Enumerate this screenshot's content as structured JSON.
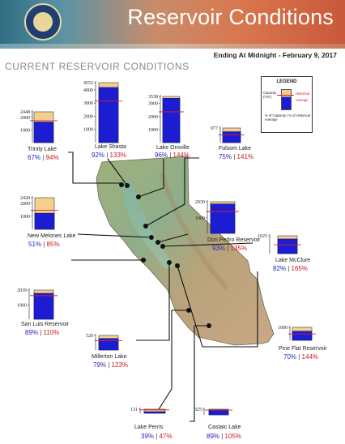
{
  "header": {
    "title": "Reservoir Conditions",
    "date_line": "Ending At Midnight - February 9, 2017"
  },
  "section_title": "CURRENT RESERVOIR CONDITIONS",
  "legend": {
    "title": "LEGEND",
    "capacity_label": "Capacity (TAF)",
    "historical_label": "Historical",
    "average_label": "Average",
    "pct_label": "% of Capacity | % of Historical Average"
  },
  "colors": {
    "storage": "#1c1cd0",
    "storage_dark": "#0a0a7a",
    "capacity": "#f4d08a",
    "historical": "#e02020",
    "pct_capacity": "#2424c4",
    "pct_average": "#d01818"
  },
  "chart_data": {
    "type": "bar",
    "title": "Reservoir Conditions",
    "subtitle": "Ending At Midnight - February 9, 2017",
    "units": "TAF",
    "series": [
      {
        "name": "Capacity"
      },
      {
        "name": "Historical Average"
      }
    ],
    "reservoirs": [
      {
        "name": "Trinity Lake",
        "capacity": 2448,
        "pct_capacity": 67,
        "pct_average": 94,
        "ticks": [
          "2448",
          "2000",
          "1000"
        ]
      },
      {
        "name": "Lake Shasta",
        "capacity": 4552,
        "pct_capacity": 92,
        "pct_average": 133,
        "ticks": [
          "4552",
          "4000",
          "3000",
          "2000",
          "1000"
        ]
      },
      {
        "name": "Lake Oroville",
        "capacity": 3538,
        "pct_capacity": 96,
        "pct_average": 144,
        "ticks": [
          "3538",
          "3000",
          "2000",
          "1000"
        ]
      },
      {
        "name": "Folsom Lake",
        "capacity": 977,
        "pct_capacity": 75,
        "pct_average": 141,
        "ticks": [
          "977"
        ]
      },
      {
        "name": "New Melones Lake",
        "capacity": 2420,
        "pct_capacity": 51,
        "pct_average": 85,
        "ticks": [
          "2420",
          "2000",
          "1000"
        ]
      },
      {
        "name": "Don Pedro Reservoir",
        "capacity": 2030,
        "pct_capacity": 93,
        "pct_average": 135,
        "ticks": [
          "2030",
          "1000"
        ]
      },
      {
        "name": "Lake McClure",
        "capacity": 1025,
        "pct_capacity": 82,
        "pct_average": 165,
        "ticks": [
          "1025"
        ]
      },
      {
        "name": "San Luis Reservoir",
        "capacity": 2039,
        "pct_capacity": 89,
        "pct_average": 110,
        "ticks": [
          "2039",
          "1000"
        ]
      },
      {
        "name": "Millerton Lake",
        "capacity": 520,
        "pct_capacity": 79,
        "pct_average": 123,
        "ticks": [
          "520"
        ]
      },
      {
        "name": "Pine Flat Reservoir",
        "capacity": 1000,
        "pct_capacity": 70,
        "pct_average": 144,
        "ticks": [
          "1000"
        ]
      },
      {
        "name": "Lake Perris",
        "capacity": 131,
        "pct_capacity": 39,
        "pct_average": 47,
        "ticks": [
          "131"
        ]
      },
      {
        "name": "Castaic Lake",
        "capacity": 325,
        "pct_capacity": 89,
        "pct_average": 105,
        "ticks": [
          "325"
        ]
      }
    ]
  }
}
